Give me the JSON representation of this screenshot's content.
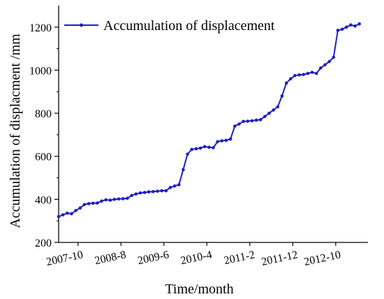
{
  "chart_data": {
    "type": "line",
    "title": "",
    "xlabel": "Time/month",
    "ylabel": "Accumulation of displacment  /mm",
    "legend": {
      "position": "top-left",
      "label": "Accumulation of displacement"
    },
    "ylim": [
      200,
      1300
    ],
    "yticks": [
      200,
      400,
      600,
      800,
      1000,
      1200
    ],
    "xticks": [
      "2007-10",
      "2008-8",
      "2009-6",
      "2010-4",
      "2011-2",
      "2011-12",
      "2012-10"
    ],
    "xtick_positions": [
      4.5,
      14.5,
      24.5,
      34.5,
      44.5,
      54.5,
      64.5
    ],
    "xlim": [
      0,
      72
    ],
    "grid": false,
    "color": "#1f1fbf",
    "series": [
      {
        "name": "Accumulation of displacement",
        "x": [
          0,
          1,
          2,
          3,
          4,
          5,
          6,
          7,
          8,
          9,
          10,
          11,
          12,
          13,
          14,
          15,
          16,
          17,
          18,
          19,
          20,
          21,
          22,
          23,
          24,
          25,
          26,
          27,
          28,
          29,
          30,
          31,
          32,
          33,
          34,
          35,
          36,
          37,
          38,
          39,
          40,
          41,
          42,
          43,
          44,
          45,
          46,
          47,
          48,
          49,
          50,
          51,
          52,
          53,
          54,
          55,
          56,
          57,
          58,
          59,
          60,
          61,
          62,
          63,
          64,
          65,
          66,
          67,
          68,
          69,
          70
        ],
        "y": [
          320,
          328,
          336,
          333,
          348,
          360,
          376,
          380,
          382,
          383,
          392,
          398,
          396,
          400,
          402,
          403,
          405,
          418,
          425,
          430,
          432,
          435,
          436,
          438,
          440,
          440,
          455,
          462,
          468,
          538,
          610,
          632,
          635,
          638,
          645,
          642,
          640,
          668,
          672,
          674,
          680,
          740,
          750,
          762,
          763,
          765,
          768,
          770,
          785,
          800,
          815,
          830,
          880,
          940,
          960,
          975,
          978,
          980,
          985,
          990,
          985,
          1010,
          1025,
          1040,
          1060,
          1185,
          1190,
          1200,
          1210,
          1205,
          1215
        ]
      }
    ]
  }
}
